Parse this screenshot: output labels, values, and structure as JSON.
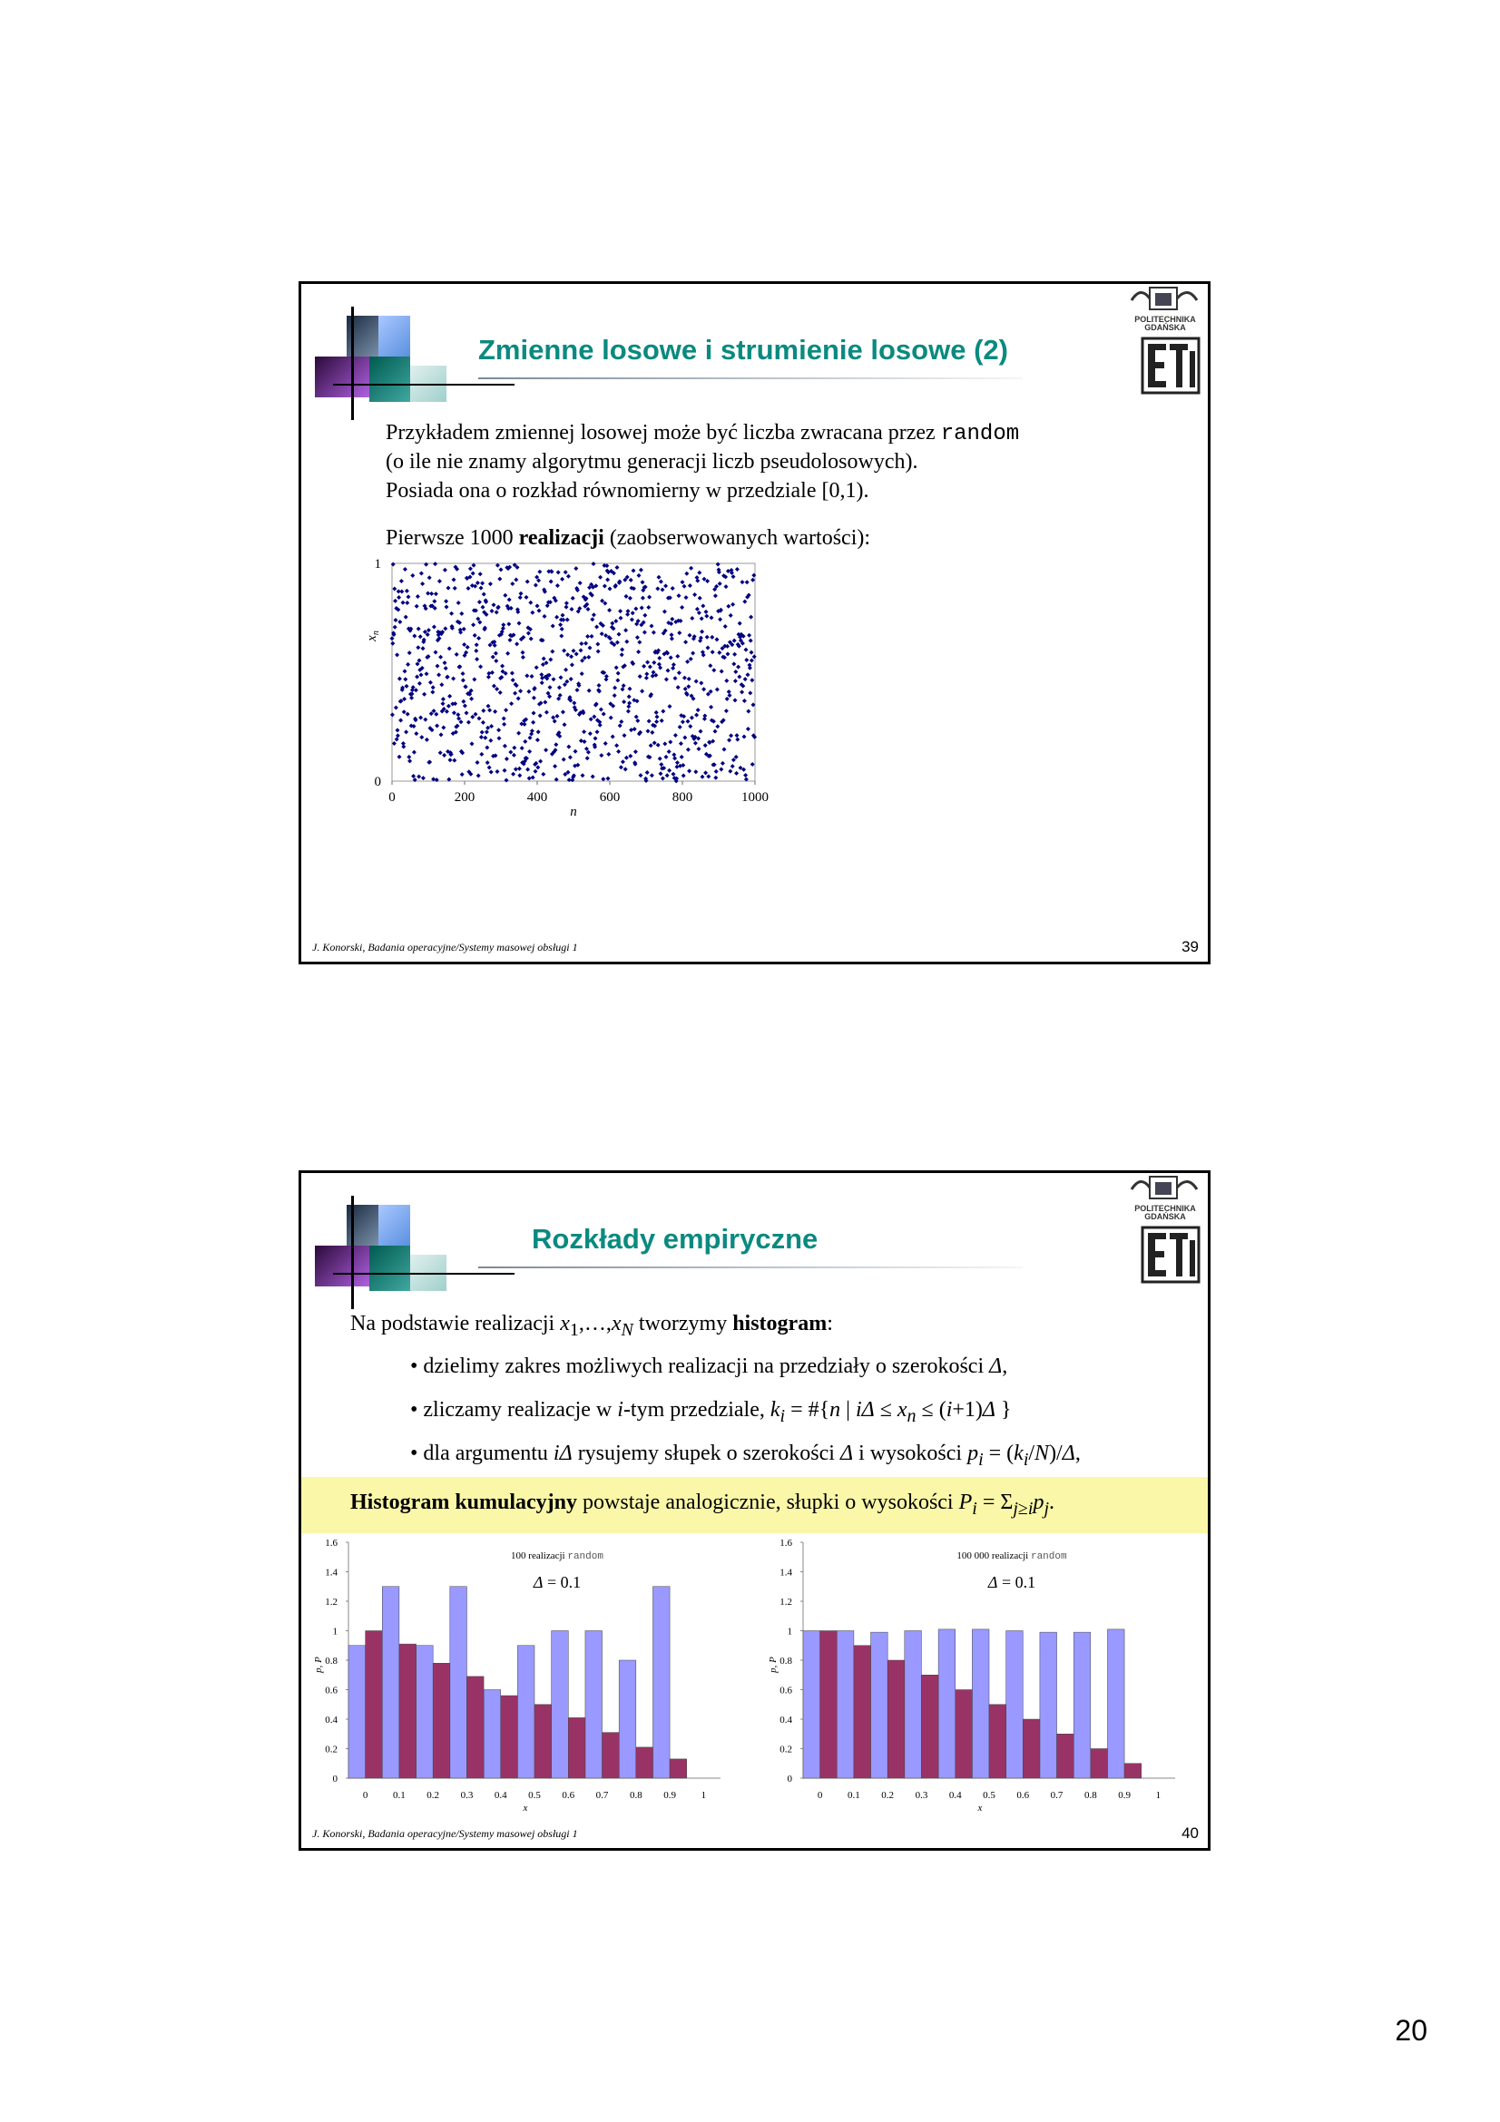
{
  "page_number": "20",
  "colors": {
    "title": "#0a8a80",
    "scatter": "#000080",
    "bar_p": "#993366",
    "bar_P": "#9999ff",
    "highlight": "#faf7a8"
  },
  "slide1": {
    "title": "Zmienne losowe i strumienie losowe (2)",
    "line1_pre": "Przykładem zmiennej losowej może być liczba zwracana przez ",
    "line1_code": "random",
    "line2": "(o ile nie znamy algorytmu generacji liczb pseudolosowych).",
    "line3": "Posiada ona o rozkład równomierny w przedziale [0,1).",
    "line4_pre": "Pierwsze 1000 ",
    "line4_bold": "realizacji",
    "line4_post": " (zaobserwowanych wartości):",
    "footer": "J. Konorski, Badania operacyjne/Systemy masowej obsługi 1",
    "slide_number": "39",
    "logo_text1": "POLITECHNIKA",
    "logo_text2": "GDAŃSKA",
    "logo_text3": "ETI"
  },
  "slide2": {
    "title": "Rozkłady empiryczne",
    "intro_pre": "Na podstawie realizacji ",
    "intro_math": "x₁,…,x_N",
    "intro_mid": " tworzymy ",
    "intro_bold": "histogram",
    "intro_post": ":",
    "bullet1": "• dzielimy zakres możliwych realizacji na przedziały o szerokości Δ,",
    "bullet2": "• zliczamy realizacje w i-tym przedziale, k_i = #{n | iΔ ≤ x_n ≤ (i+1)Δ }",
    "bullet3": "• dla argumentu iΔ rysujemy słupek o szerokości Δ i wysokości p_i = (k_i/N)/Δ,",
    "cumul_bold": "Histogram kumulacyjny",
    "cumul_post": " powstaje analogicznie, słupki o wysokości P_i = Σ_{j≥i} p_j.",
    "footer": "J. Konorski, Badania operacyjne/Systemy masowej obsługi 1",
    "slide_number": "40",
    "logo_text1": "POLITECHNIKA",
    "logo_text2": "GDAŃSKA",
    "logo_text3": "ETI"
  },
  "chart_data": [
    {
      "type": "scatter",
      "title": "",
      "xlabel": "n",
      "ylabel": "x_n",
      "xlim": [
        0,
        1000
      ],
      "ylim": [
        0,
        1
      ],
      "x_ticks": [
        "0",
        "200",
        "400",
        "600",
        "800",
        "1000"
      ],
      "y_ticks": [
        "0",
        "1"
      ],
      "n_points": 1000,
      "generator": "uniform random [0,1)",
      "grid": false
    },
    {
      "type": "bar",
      "annotation": "100 realizacji random",
      "delta_label": "Δ = 0.1",
      "xlabel": "x",
      "ylabel": "p, P",
      "categories": [
        0,
        0.1,
        0.2,
        0.3,
        0.4,
        0.5,
        0.6,
        0.7,
        0.8,
        0.9
      ],
      "x_ticks": [
        "0",
        "0.1",
        "0.2",
        "0.3",
        "0.4",
        "0.5",
        "0.6",
        "0.7",
        "0.8",
        "0.9",
        "1"
      ],
      "y_ticks": [
        "0",
        "0.2",
        "0.4",
        "0.6",
        "0.8",
        "1",
        "1.2",
        "1.4",
        "1.6"
      ],
      "ylim": [
        0,
        1.6
      ],
      "series": [
        {
          "name": "p",
          "values": [
            0.9,
            1.3,
            0.9,
            1.3,
            0.6,
            0.9,
            1.0,
            1.0,
            0.8,
            1.3
          ]
        },
        {
          "name": "P",
          "values": [
            1.0,
            0.91,
            0.78,
            0.69,
            0.56,
            0.5,
            0.41,
            0.31,
            0.21,
            0.13
          ]
        }
      ]
    },
    {
      "type": "bar",
      "annotation": "100 000 realizacji random",
      "delta_label": "Δ = 0.1",
      "xlabel": "x",
      "ylabel": "p, P",
      "categories": [
        0,
        0.1,
        0.2,
        0.3,
        0.4,
        0.5,
        0.6,
        0.7,
        0.8,
        0.9
      ],
      "x_ticks": [
        "0",
        "0.1",
        "0.2",
        "0.3",
        "0.4",
        "0.5",
        "0.6",
        "0.7",
        "0.8",
        "0.9",
        "1"
      ],
      "y_ticks": [
        "0",
        "0.2",
        "0.4",
        "0.6",
        "0.8",
        "1",
        "1.2",
        "1.4",
        "1.6"
      ],
      "ylim": [
        0,
        1.6
      ],
      "series": [
        {
          "name": "p",
          "values": [
            1.0,
            1.0,
            0.99,
            1.0,
            1.01,
            1.01,
            1.0,
            0.99,
            0.99,
            1.01
          ]
        },
        {
          "name": "P",
          "values": [
            1.0,
            0.9,
            0.8,
            0.7,
            0.6,
            0.5,
            0.4,
            0.3,
            0.2,
            0.1
          ]
        }
      ]
    }
  ]
}
